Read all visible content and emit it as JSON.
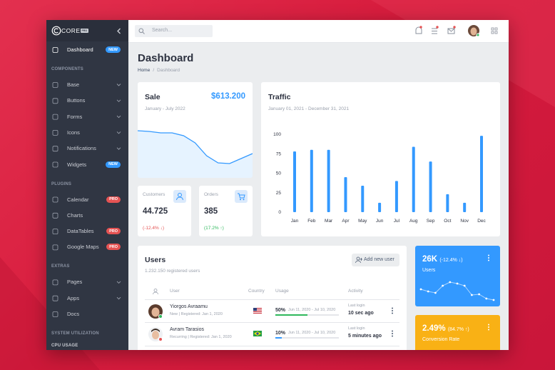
{
  "brand": {
    "name": "COREUI",
    "badge": "PRO"
  },
  "search": {
    "placeholder": "Search..."
  },
  "sidebar": {
    "dashboard": {
      "label": "Dashboard",
      "badge": "NEW",
      "badge_color": "#3399ff"
    },
    "sections": [
      {
        "title": "COMPONENTS",
        "items": [
          {
            "label": "Base",
            "submenu": true
          },
          {
            "label": "Buttons",
            "submenu": true
          },
          {
            "label": "Forms",
            "submenu": true
          },
          {
            "label": "Icons",
            "submenu": true
          },
          {
            "label": "Notifications",
            "submenu": true
          },
          {
            "label": "Widgets",
            "badge": "NEW",
            "badge_color": "#3399ff"
          }
        ]
      },
      {
        "title": "PLUGINS",
        "items": [
          {
            "label": "Calendar",
            "badge": "PRO",
            "badge_color": "#e55353"
          },
          {
            "label": "Charts"
          },
          {
            "label": "DataTables",
            "badge": "PRO",
            "badge_color": "#e55353"
          },
          {
            "label": "Google Maps",
            "badge": "PRO",
            "badge_color": "#e55353"
          }
        ]
      },
      {
        "title": "EXTRAS",
        "items": [
          {
            "label": "Pages",
            "submenu": true
          },
          {
            "label": "Apps",
            "submenu": true
          },
          {
            "label": "Docs"
          }
        ]
      },
      {
        "title": "SYSTEM UTILIZATION",
        "metrics": [
          "CPU USAGE"
        ]
      }
    ]
  },
  "header": {
    "title": "Dashboard",
    "breadcrumb": [
      "Home",
      "Dashboard"
    ]
  },
  "sale": {
    "title": "Sale",
    "amount": "$613.200",
    "period": "January - July 2022",
    "trend": [
      66,
      65,
      63,
      63,
      59,
      49,
      31,
      21,
      20,
      27,
      34
    ],
    "color": "#3399ff"
  },
  "stats": [
    {
      "label": "Customers",
      "value": "44.725",
      "change": "(-12.4% ↓)",
      "change_color": "#e55353"
    },
    {
      "label": "Orders",
      "value": "385",
      "change": "(17.2% ↑)",
      "change_color": "#2eb85c"
    }
  ],
  "traffic": {
    "title": "Traffic",
    "period": "January 01, 2021 - December 31, 2021",
    "categories": [
      "Jan",
      "Feb",
      "Mar",
      "Apr",
      "May",
      "Jun",
      "Jul",
      "Aug",
      "Sep",
      "Oct",
      "Nov",
      "Dec"
    ],
    "values": [
      78,
      80,
      80,
      45,
      34,
      12,
      40,
      84,
      65,
      23,
      12,
      98
    ],
    "color": "#3399ff",
    "ylim": [
      0,
      100
    ],
    "yticks": [
      0,
      25,
      50,
      75,
      100
    ]
  },
  "users": {
    "title": "Users",
    "subtitle": "1.232.150 registered users",
    "button": "Add new user",
    "columns": [
      "User",
      "Country",
      "Usage",
      "Activity"
    ],
    "rows": [
      {
        "name": "Yiorgos Avraamu",
        "meta": "New | Registered: Jan 1, 2020",
        "usage": {
          "value": 50,
          "label": "50%",
          "color": "#2eb85c"
        },
        "period": "Jun 11, 2020 - Jul 10, 2020",
        "activity_label": "Last login",
        "activity": "10 sec ago"
      },
      {
        "name": "Avram Tarasios",
        "meta": "Recurring | Registered: Jan 1, 2020",
        "usage": {
          "value": 10,
          "label": "10%",
          "color": "#3399ff"
        },
        "period": "Jun 11, 2020 - Jul 10, 2020",
        "activity_label": "Last login",
        "activity": "5 minutes ago"
      }
    ]
  },
  "widgets": [
    {
      "value": "26K",
      "change": "(-12.4% ↓)",
      "label": "Users",
      "color": "#3399ff",
      "trend": [
        25,
        22,
        20,
        30,
        35,
        33,
        30,
        17,
        18,
        12,
        10
      ]
    },
    {
      "value": "2.49%",
      "change": "(84.7% ↑)",
      "label": "Conversion Rate",
      "color": "#f9b115"
    }
  ]
}
